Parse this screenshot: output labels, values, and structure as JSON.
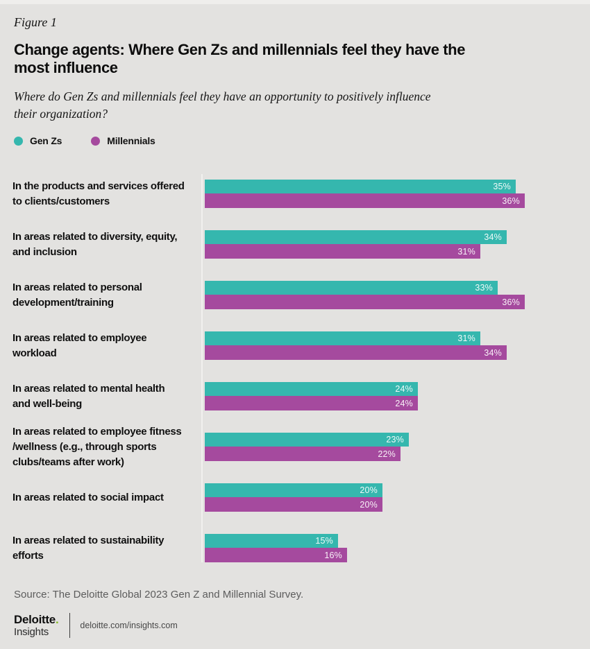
{
  "figure_label": "Figure 1",
  "title": "Change agents: Where Gen Zs and millennials feel they have the\nmost influence",
  "subtitle": "Where do Gen Zs and millennials feel they have an opportunity to positively influence\ntheir organization?",
  "legend": {
    "genz_label": "Gen Zs",
    "millennial_label": "Millennials"
  },
  "colors": {
    "genz": "#35b7ae",
    "millennial": "#a54a9e",
    "background": "#e3e2e0",
    "brand_green": "#86bc25"
  },
  "chart_data": {
    "type": "bar",
    "orientation": "horizontal",
    "value_suffix": "%",
    "xlim": [
      0,
      43
    ],
    "grid": false,
    "legend_position": "top-left",
    "categories": [
      "In the products and services offered\nto clients/customers",
      "In areas related to diversity, equity,\nand inclusion",
      "In areas related to personal\ndevelopment/training",
      "In areas related to employee\n workload",
      "In areas related to mental health\nand well-being",
      "In areas related to employee fitness\n/wellness (e.g., through sports\nclubs/teams after work)",
      "In areas related to social impact",
      "In areas related to sustainability\nefforts"
    ],
    "series": [
      {
        "name": "Gen Zs",
        "color": "#35b7ae",
        "values": [
          35,
          34,
          33,
          31,
          24,
          23,
          20,
          15
        ]
      },
      {
        "name": "Millennials",
        "color": "#a54a9e",
        "values": [
          36,
          31,
          36,
          34,
          24,
          22,
          20,
          16
        ]
      }
    ]
  },
  "source": "Source: The Deloitte Global 2023 Gen Z and Millennial Survey.",
  "footer": {
    "brand_name": "Deloitte",
    "brand_dot": ".",
    "brand_sub": "Insights",
    "url": "deloitte.com/insights.com"
  }
}
